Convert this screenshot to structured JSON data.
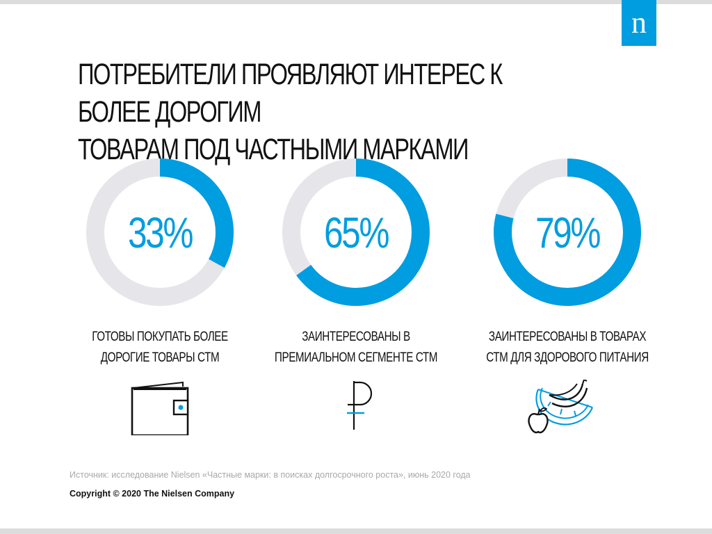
{
  "logo": {
    "letter": "n"
  },
  "title": {
    "line1": "ПОТРЕБИТЕЛИ ПРОЯВЛЯЮТ ИНТЕРЕС К БОЛЕЕ ДОРОГИМ",
    "line2": "ТОВАРАМ ПОД ЧАСТНЫМИ МАРКАМИ"
  },
  "colors": {
    "accent": "#009de0",
    "track": "#e6e6ea",
    "text": "#111111",
    "muted": "#a8a8a8"
  },
  "chart_data": [
    {
      "type": "pie",
      "value": 33,
      "value_label": "33%",
      "label_lines": [
        "ГОТОВЫ ПОКУПАТЬ БОЛЕЕ",
        "ДОРОГИЕ ТОВАРЫ СТМ"
      ],
      "icon": "wallet-icon"
    },
    {
      "type": "pie",
      "value": 65,
      "value_label": "65%",
      "label_lines": [
        "ЗАИНТЕРЕСОВАНЫ В",
        "ПРЕМИАЛЬНОМ СЕГМЕНТЕ СТМ"
      ],
      "icon": "ruble-icon"
    },
    {
      "type": "pie",
      "value": 79,
      "value_label": "79%",
      "label_lines": [
        "ЗАИНТЕРЕСОВАНЫ В ТОВАРАХ",
        "СТМ ДЛЯ ЗДОРОВОГО ПИТАНИЯ"
      ],
      "icon": "fruit-icon"
    }
  ],
  "footer": {
    "source": "Источник: исследование Nielsen «Частные марки: в поисках долгосрочного роста», июнь 2020 года",
    "copyright": "Copyright © 2020 The Nielsen Company"
  }
}
